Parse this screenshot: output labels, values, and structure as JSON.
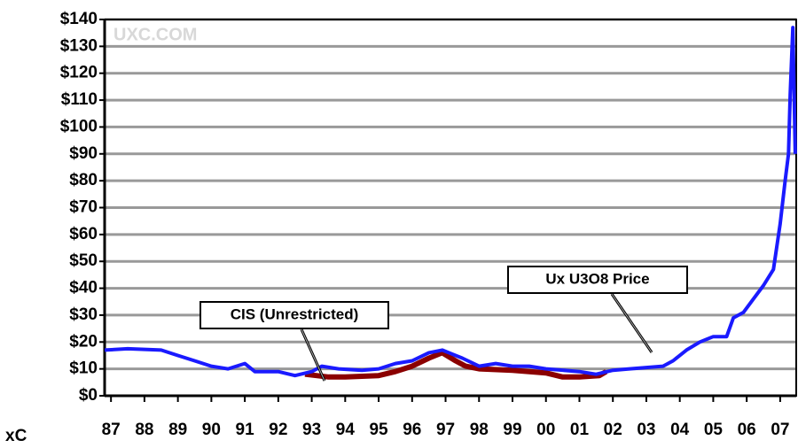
{
  "chart_data": {
    "type": "line",
    "watermark": "UXC.COM",
    "source": "xC",
    "xlim": [
      1986.81,
      2007.48
    ],
    "xticks": [
      {
        "value": 1987,
        "label": "87"
      },
      {
        "value": 1988,
        "label": "88"
      },
      {
        "value": 1989,
        "label": "89"
      },
      {
        "value": 1990,
        "label": "90"
      },
      {
        "value": 1991,
        "label": "91"
      },
      {
        "value": 1992,
        "label": "92"
      },
      {
        "value": 1993,
        "label": "93"
      },
      {
        "value": 1994,
        "label": "94"
      },
      {
        "value": 1995,
        "label": "95"
      },
      {
        "value": 1996,
        "label": "96"
      },
      {
        "value": 1997,
        "label": "97"
      },
      {
        "value": 1998,
        "label": "98"
      },
      {
        "value": 1999,
        "label": "99"
      },
      {
        "value": 2000,
        "label": "00"
      },
      {
        "value": 2001,
        "label": "01"
      },
      {
        "value": 2002,
        "label": "02"
      },
      {
        "value": 2003,
        "label": "03"
      },
      {
        "value": 2004,
        "label": "04"
      },
      {
        "value": 2005,
        "label": "05"
      },
      {
        "value": 2006,
        "label": "06"
      },
      {
        "value": 2007,
        "label": "07"
      }
    ],
    "ylim": [
      0,
      140
    ],
    "yticks": [
      {
        "value": 0,
        "label": "$0"
      },
      {
        "value": 10,
        "label": "$10"
      },
      {
        "value": 20,
        "label": "$20"
      },
      {
        "value": 30,
        "label": "$30"
      },
      {
        "value": 40,
        "label": "$40"
      },
      {
        "value": 50,
        "label": "$50"
      },
      {
        "value": 60,
        "label": "$60"
      },
      {
        "value": 70,
        "label": "$70"
      },
      {
        "value": 80,
        "label": "$80"
      },
      {
        "value": 90,
        "label": "$90"
      },
      {
        "value": 100,
        "label": "$100"
      },
      {
        "value": 110,
        "label": "$110"
      },
      {
        "value": 120,
        "label": "$120"
      },
      {
        "value": 130,
        "label": "$130"
      },
      {
        "value": 140,
        "label": "$140"
      }
    ],
    "grid": true,
    "series": [
      {
        "name": "Ux U3O8 Price",
        "color": "#1a1aff",
        "x": [
          1986.81,
          1987.5,
          1988.5,
          1989,
          1989.5,
          1990,
          1990.5,
          1991,
          1991.3,
          1992,
          1992.5,
          1993,
          1993.3,
          1993.8,
          1994.5,
          1995,
          1995.5,
          1996,
          1996.5,
          1996.9,
          1997.5,
          1998,
          1998.5,
          1999,
          1999.5,
          2000,
          2001,
          2001.5,
          2002,
          2002.5,
          2003,
          2003.5,
          2003.8,
          2004.2,
          2004.6,
          2005,
          2005.4,
          2005.6,
          2005.9,
          2006.2,
          2006.5,
          2006.8,
          2007,
          2007.15,
          2007.25,
          2007.3,
          2007.38,
          2007.45
        ],
        "values": [
          17,
          17.5,
          17,
          15,
          13,
          11,
          10,
          12,
          9,
          9,
          7.5,
          9,
          11,
          10,
          9.5,
          10,
          12,
          13,
          16,
          17,
          14,
          11,
          12,
          11,
          11,
          10,
          9,
          8,
          9.5,
          10,
          10.5,
          11,
          13,
          17,
          20,
          22,
          22,
          29,
          31,
          36,
          41,
          47,
          64,
          80,
          90,
          112,
          137,
          90
        ]
      },
      {
        "name": "CIS (Unrestricted)",
        "color": "#8b0000",
        "x": [
          1992.8,
          1993.5,
          1994,
          1995,
          1995.5,
          1996,
          1996.5,
          1996.9,
          1997.3,
          1997.6,
          1998,
          1999,
          2000,
          2000.5,
          2001,
          2001.6,
          2001.8
        ],
        "values": [
          8,
          7,
          7,
          7.5,
          9,
          11,
          14,
          16,
          13,
          11,
          10,
          9.5,
          8.5,
          7,
          7,
          7.5,
          9
        ]
      }
    ]
  }
}
